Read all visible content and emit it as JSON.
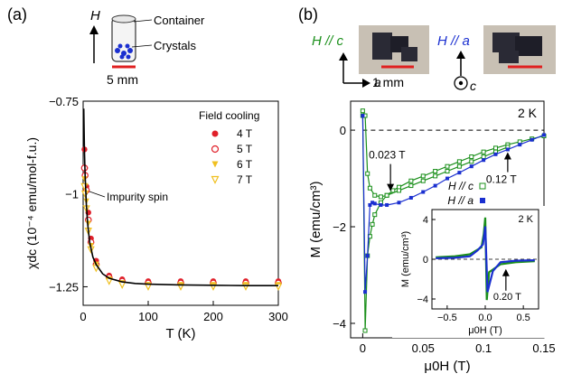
{
  "panel_a": {
    "label": "(a)",
    "field_arrow": "H",
    "container_label": "Container",
    "crystals_label": "Crystals",
    "scale_label": "5 mm",
    "impurity_label": "Impurity spin",
    "colors": {
      "4T": "#e0202a",
      "5T": "#e0202a",
      "6T": "#f0c020",
      "7T": "#f0c020",
      "fit": "#000000",
      "scale": "#e02020",
      "crystal": "#1a2fd0"
    }
  },
  "panel_b": {
    "label": "(b)",
    "photo1_label": "H // c",
    "photo2_label": "H // a",
    "axis_a": "a",
    "axis_c": "c",
    "scale_label": "1 mm",
    "colors": {
      "c": "#1a8f1a",
      "a": "#1a2fd0"
    }
  },
  "chart_data": [
    {
      "type": "scatter",
      "xlabel": "T (K)",
      "ylabel": "χdc (10⁻⁴ emu/mol-f.u.)",
      "xlim": [
        0,
        300
      ],
      "ylim": [
        -1.3,
        -0.75
      ],
      "xticks": [
        0,
        100,
        200,
        300
      ],
      "yticks": [
        -1.25,
        -1,
        -0.75
      ],
      "xtick_labels": [
        "0",
        "100",
        "200",
        "300"
      ],
      "ytick_labels": [
        "−1.25",
        "−1",
        "−0.75"
      ],
      "legend_title": "Field cooling",
      "legend_position": "top-right",
      "series": [
        {
          "name": "4 T",
          "marker": "filled-circle",
          "color": "#e0202a",
          "x": [
            2,
            3,
            5,
            8,
            12,
            20,
            40,
            60,
            100,
            150,
            200,
            250,
            300
          ],
          "y": [
            -0.88,
            -0.93,
            -0.98,
            -1.05,
            -1.12,
            -1.18,
            -1.22,
            -1.23,
            -1.235,
            -1.235,
            -1.235,
            -1.235,
            -1.235
          ]
        },
        {
          "name": "5 T",
          "marker": "open-circle",
          "color": "#e0202a",
          "x": [
            2,
            3,
            5,
            8,
            12,
            20,
            40,
            60,
            100,
            150,
            200,
            250,
            300
          ],
          "y": [
            -0.93,
            -0.95,
            -0.99,
            -1.07,
            -1.13,
            -1.19,
            -1.225,
            -1.235,
            -1.24,
            -1.24,
            -1.24,
            -1.24,
            -1.24
          ]
        },
        {
          "name": "6 T",
          "marker": "filled-triangle-down",
          "color": "#f0c020",
          "x": [
            2,
            3,
            5,
            8,
            12,
            20,
            40,
            60,
            100,
            150,
            200,
            250,
            300
          ],
          "y": [
            -0.96,
            -0.98,
            -1.02,
            -1.08,
            -1.14,
            -1.19,
            -1.23,
            -1.24,
            -1.245,
            -1.245,
            -1.245,
            -1.245,
            -1.245
          ]
        },
        {
          "name": "7 T",
          "marker": "open-triangle-down",
          "color": "#f0c020",
          "x": [
            2,
            3,
            5,
            8,
            12,
            20,
            40,
            60,
            100,
            150,
            200,
            250,
            300
          ],
          "y": [
            -0.98,
            -1.0,
            -1.04,
            -1.1,
            -1.15,
            -1.2,
            -1.235,
            -1.245,
            -1.25,
            -1.25,
            -1.25,
            -1.25,
            -1.25
          ]
        },
        {
          "marker": "line",
          "color": "#000000",
          "x": [
            1,
            2,
            3,
            4,
            5,
            7,
            10,
            15,
            20,
            30,
            40,
            60,
            80,
            100,
            150,
            200,
            250,
            300
          ],
          "y": [
            -0.77,
            -0.88,
            -0.95,
            -0.99,
            -1.03,
            -1.08,
            -1.13,
            -1.17,
            -1.19,
            -1.215,
            -1.227,
            -1.237,
            -1.241,
            -1.243,
            -1.245,
            -1.246,
            -1.247,
            -1.247
          ]
        }
      ]
    },
    {
      "type": "line",
      "xlabel": "μ0H (T)",
      "ylabel": "M (emu/cm³)",
      "xlim": [
        -0.01,
        0.15
      ],
      "ylim": [
        -4.3,
        0.6
      ],
      "xticks": [
        0,
        0.05,
        0.1,
        0.15
      ],
      "yticks": [
        -4,
        -2,
        0
      ],
      "xtick_labels": [
        "0",
        "0.05",
        "0.1",
        "0.15"
      ],
      "ytick_labels": [
        "−4",
        "−2",
        "0"
      ],
      "temperature_label": "2 K",
      "legend_position": "center-right",
      "annotations": [
        {
          "text": "0.023 T",
          "x": 0.023,
          "y": -1.3,
          "color": "#1a8f1a"
        },
        {
          "text": "0.12 T",
          "x": 0.12,
          "y": -0.42,
          "color": "#1a2fd0"
        }
      ],
      "series": [
        {
          "name": "H // c",
          "marker": "open-square",
          "color": "#1a8f1a",
          "x": [
            0,
            0.002,
            0.004,
            0.006,
            0.008,
            0.01,
            0.015,
            0.02,
            0.025,
            0.03,
            0.04,
            0.05,
            0.06,
            0.07,
            0.08,
            0.09,
            0.1,
            0.11,
            0.12,
            0.13,
            0.14,
            0.15
          ],
          "y": [
            0.3,
            -4.15,
            -2.6,
            -2.2,
            -1.95,
            -1.75,
            -1.5,
            -1.35,
            -1.25,
            -1.18,
            -1.05,
            -0.95,
            -0.85,
            -0.75,
            -0.65,
            -0.55,
            -0.45,
            -0.37,
            -0.3,
            -0.24,
            -0.18,
            -0.12
          ],
          "return_x": [
            0.0,
            0.002,
            0.004,
            0.006,
            0.01,
            0.015,
            0.02,
            0.03,
            0.04,
            0.05,
            0.06,
            0.07,
            0.08,
            0.09,
            0.1,
            0.11,
            0.12
          ],
          "return_y": [
            0.4,
            0.3,
            -0.9,
            -1.2,
            -1.35,
            -1.38,
            -1.35,
            -1.25,
            -1.15,
            -1.05,
            -0.95,
            -0.85,
            -0.75,
            -0.65,
            -0.55,
            -0.45,
            -0.35
          ]
        },
        {
          "name": "H // a",
          "marker": "filled-square",
          "color": "#1a2fd0",
          "x": [
            0,
            0.002,
            0.004,
            0.006,
            0.008,
            0.01,
            0.015,
            0.02,
            0.03,
            0.04,
            0.05,
            0.06,
            0.07,
            0.08,
            0.09,
            0.1,
            0.11,
            0.12,
            0.13,
            0.14,
            0.15
          ],
          "y": [
            0.3,
            -3.35,
            -2.6,
            -1.55,
            -1.5,
            -1.52,
            -1.55,
            -1.55,
            -1.5,
            -1.4,
            -1.28,
            -1.15,
            -1.0,
            -0.88,
            -0.75,
            -0.62,
            -0.5,
            -0.4,
            -0.3,
            -0.2,
            -0.1
          ]
        }
      ]
    },
    {
      "type": "line",
      "xlabel": "μ0H (T)",
      "ylabel": "M (emu/cm³)",
      "xlim": [
        -0.7,
        0.7
      ],
      "ylim": [
        -5,
        5
      ],
      "xticks": [
        -0.5,
        0,
        0.5
      ],
      "yticks": [
        -4,
        0,
        4
      ],
      "xtick_labels": [
        "−0.5",
        "0.0",
        "0.5"
      ],
      "ytick_labels": [
        "−4",
        "0",
        "4"
      ],
      "temperature_label": "2 K",
      "annotations": [
        {
          "text": "0.20 T",
          "x": 0.2,
          "y": -0.8
        }
      ],
      "series": [
        {
          "name": "H // c",
          "color": "#1a8f1a",
          "x": [
            -0.65,
            -0.4,
            -0.2,
            -0.05,
            -0.02,
            0,
            0.02,
            0.05,
            0.2,
            0.4,
            0.65
          ],
          "y": [
            0.2,
            0.3,
            0.5,
            1.2,
            2.5,
            4.2,
            -4.1,
            -1.3,
            -0.5,
            -0.3,
            -0.2
          ]
        },
        {
          "name": "H // a",
          "color": "#1a2fd0",
          "x": [
            -0.65,
            -0.4,
            -0.2,
            -0.1,
            -0.03,
            0,
            0.03,
            0.1,
            0.2,
            0.4,
            0.65
          ],
          "y": [
            0.1,
            0.15,
            0.3,
            0.9,
            1.5,
            3.3,
            -3.3,
            -1.2,
            -0.3,
            -0.15,
            -0.1
          ]
        }
      ]
    }
  ]
}
